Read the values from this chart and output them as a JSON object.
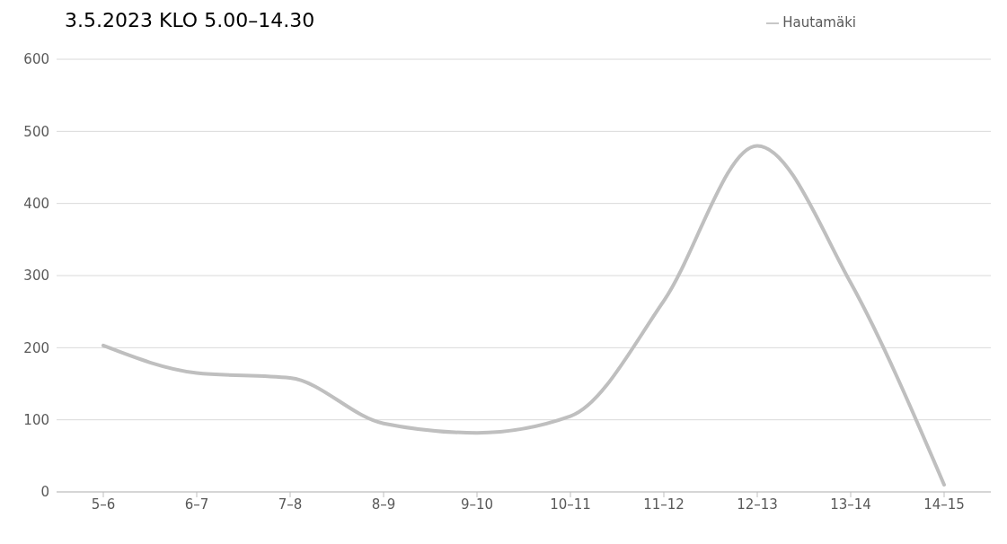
{
  "chart_data": {
    "type": "line",
    "title": "3.5.2023 KLO 5.00–14.30",
    "categories": [
      "5–6",
      "6–7",
      "7–8",
      "8–9",
      "9–10",
      "10–11",
      "11–12",
      "12–13",
      "13–14",
      "14–15"
    ],
    "series": [
      {
        "name": "Hautamäki",
        "color": "#bfbfbf",
        "values": [
          203,
          165,
          158,
          95,
          82,
          105,
          265,
          480,
          290,
          10
        ]
      }
    ],
    "ylim": [
      0,
      600
    ],
    "yticks": [
      0,
      100,
      200,
      300,
      400,
      500,
      600
    ],
    "grid": "y",
    "legend": "top right",
    "marker": "none",
    "line_style": "solid"
  }
}
